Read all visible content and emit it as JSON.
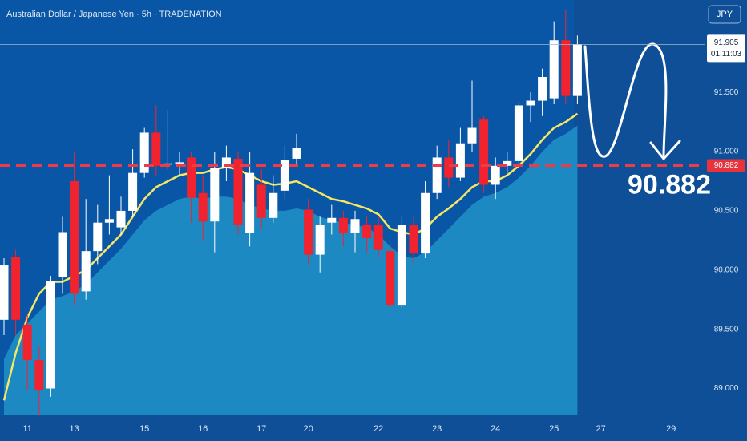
{
  "chart_data": {
    "type": "candlestick",
    "title": "Australian Dollar / Japanese Yen · 5h · TRADENATION",
    "currency": "JPY",
    "countdown": "01:11:03",
    "target": 90.882,
    "ylim": [
      88.78,
      92.28
    ],
    "yticks": [
      {
        "value": 89,
        "label": "89.000"
      },
      {
        "value": 89.5,
        "label": "89.500"
      },
      {
        "value": 90,
        "label": "90.000"
      },
      {
        "value": 90.5,
        "label": "90.500"
      },
      {
        "value": 91,
        "label": "91.000"
      },
      {
        "value": 91.5,
        "label": "91.500"
      }
    ],
    "xticks": [
      {
        "value": 2,
        "label": "11"
      },
      {
        "value": 6,
        "label": "13"
      },
      {
        "value": 12,
        "label": "15"
      },
      {
        "value": 17,
        "label": "16"
      },
      {
        "value": 22,
        "label": "17"
      },
      {
        "value": 26,
        "label": "20"
      },
      {
        "value": 32,
        "label": "22"
      },
      {
        "value": 37,
        "label": "23"
      },
      {
        "value": 42,
        "label": "24"
      },
      {
        "value": 47,
        "label": "25"
      },
      {
        "value": 51,
        "label": "27"
      },
      {
        "value": 57,
        "label": "29"
      }
    ],
    "up_color": "#ffffff",
    "down_color": "#f0232f",
    "open": [
      89.58,
      90.11,
      89.54,
      89.24,
      89.0,
      89.94,
      90.75,
      89.82,
      90.16,
      90.4,
      90.36,
      90.5,
      90.82,
      91.16,
      90.89,
      90.9,
      90.95,
      90.65,
      90.41,
      90.86,
      90.94,
      90.31,
      90.72,
      90.44,
      90.67,
      90.94,
      90.51,
      90.13,
      90.4,
      90.44,
      90.31,
      90.38,
      90.38,
      90.16,
      89.7,
      90.38,
      90.14,
      90.65,
      90.95,
      90.78,
      91.07,
      91.27,
      90.72,
      90.88,
      90.92,
      91.39,
      91.43,
      91.45,
      91.94,
      91.47
    ],
    "high": [
      90.1,
      90.17,
      89.62,
      89.35,
      89.95,
      90.45,
      91.0,
      90.6,
      90.55,
      90.8,
      90.62,
      91.02,
      91.2,
      91.39,
      91.35,
      91.0,
      91.0,
      90.8,
      91.0,
      91.05,
      91.0,
      91.0,
      90.85,
      90.8,
      91.05,
      91.15,
      90.6,
      90.45,
      90.55,
      90.5,
      90.5,
      90.45,
      90.45,
      90.22,
      90.45,
      90.45,
      90.75,
      91.05,
      91.1,
      91.2,
      91.6,
      91.3,
      90.95,
      91.0,
      91.42,
      91.5,
      91.7,
      92.1,
      92.2,
      91.98
    ],
    "low": [
      89.45,
      89.45,
      88.99,
      88.77,
      88.93,
      89.8,
      89.7,
      89.75,
      90.05,
      90.3,
      90.3,
      90.45,
      90.78,
      90.8,
      90.85,
      90.8,
      90.4,
      90.25,
      90.15,
      90.75,
      90.3,
      90.2,
      90.35,
      90.4,
      90.6,
      90.88,
      90.05,
      89.98,
      90.3,
      90.2,
      90.15,
      90.15,
      90.1,
      89.68,
      89.68,
      90.05,
      90.1,
      90.6,
      90.7,
      90.75,
      91.0,
      90.65,
      90.6,
      90.82,
      90.88,
      91.25,
      91.3,
      91.4,
      91.4,
      91.4
    ],
    "close": [
      90.04,
      89.58,
      89.24,
      88.99,
      89.91,
      90.32,
      89.8,
      90.16,
      90.4,
      90.43,
      90.5,
      90.82,
      91.16,
      90.88,
      90.9,
      90.91,
      90.61,
      90.41,
      90.86,
      90.95,
      90.38,
      90.82,
      90.44,
      90.65,
      90.93,
      91.03,
      90.13,
      90.38,
      90.44,
      90.31,
      90.43,
      90.27,
      90.17,
      89.7,
      90.38,
      90.14,
      90.65,
      90.95,
      90.78,
      91.07,
      91.2,
      90.72,
      90.88,
      90.92,
      91.39,
      91.43,
      91.63,
      91.94,
      91.47,
      91.905
    ],
    "ma": {
      "color": "#f5e663",
      "values": [
        88.9,
        89.3,
        89.6,
        89.8,
        89.9,
        89.9,
        89.95,
        90.0,
        90.1,
        90.2,
        90.3,
        90.45,
        90.6,
        90.7,
        90.75,
        90.8,
        90.82,
        90.82,
        90.85,
        90.87,
        90.85,
        90.8,
        90.75,
        90.72,
        90.73,
        90.75,
        90.7,
        90.65,
        90.6,
        90.58,
        90.55,
        90.52,
        90.47,
        90.35,
        90.32,
        90.3,
        90.35,
        90.45,
        90.52,
        90.6,
        90.7,
        90.75,
        90.75,
        90.8,
        90.88,
        90.98,
        91.1,
        91.2,
        91.25,
        91.32
      ]
    },
    "area": {
      "color": "#1e8fc6",
      "values": [
        89.25,
        89.45,
        89.55,
        89.65,
        89.75,
        89.78,
        89.82,
        89.88,
        89.98,
        90.08,
        90.18,
        90.3,
        90.42,
        90.5,
        90.55,
        90.6,
        90.62,
        90.6,
        90.62,
        90.62,
        90.6,
        90.55,
        90.52,
        90.5,
        90.5,
        90.52,
        90.5,
        90.45,
        90.42,
        90.4,
        90.38,
        90.36,
        90.3,
        90.2,
        90.12,
        90.1,
        90.15,
        90.25,
        90.35,
        90.45,
        90.55,
        90.62,
        90.65,
        90.7,
        90.78,
        90.88,
        91.0,
        91.1,
        91.15,
        91.22
      ]
    }
  }
}
